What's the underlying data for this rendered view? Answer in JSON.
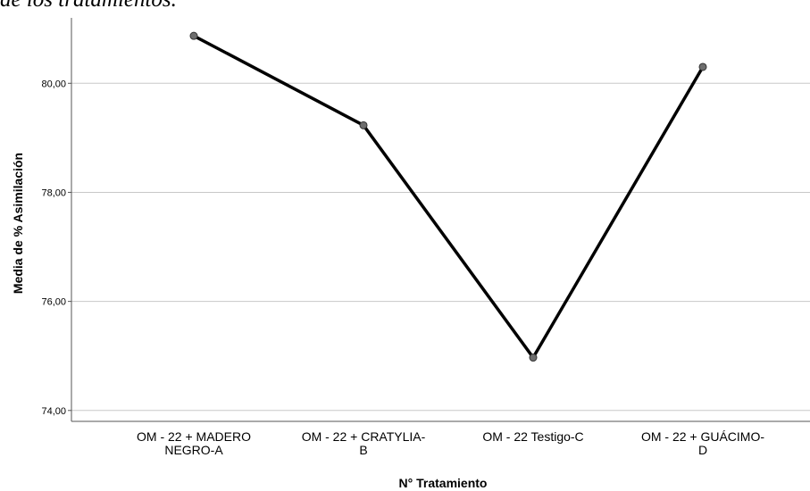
{
  "caption": "de los tratamientos.",
  "chart_data": {
    "type": "line",
    "xlabel": "N° Tratamiento",
    "ylabel": "Media de % Asimilación",
    "ylim": [
      73.8,
      81.2
    ],
    "yticks": [
      "74,00",
      "76,00",
      "78,00",
      "80,00"
    ],
    "ytick_values": [
      74,
      76,
      78,
      80
    ],
    "grid": true,
    "categories": [
      [
        "OM - 22 + MADERO",
        "NEGRO-A"
      ],
      [
        "OM - 22 + CRATYLIA-",
        "B"
      ],
      [
        "OM - 22 Testigo-C"
      ],
      [
        "OM - 22 + GUÁCIMO-",
        "D"
      ]
    ],
    "values": [
      80.87,
      79.23,
      74.97,
      80.3
    ],
    "colors": {
      "line": "#000000",
      "marker": "#6e6e6e",
      "grid": "#c8c8c8",
      "axis": "#555555"
    }
  }
}
